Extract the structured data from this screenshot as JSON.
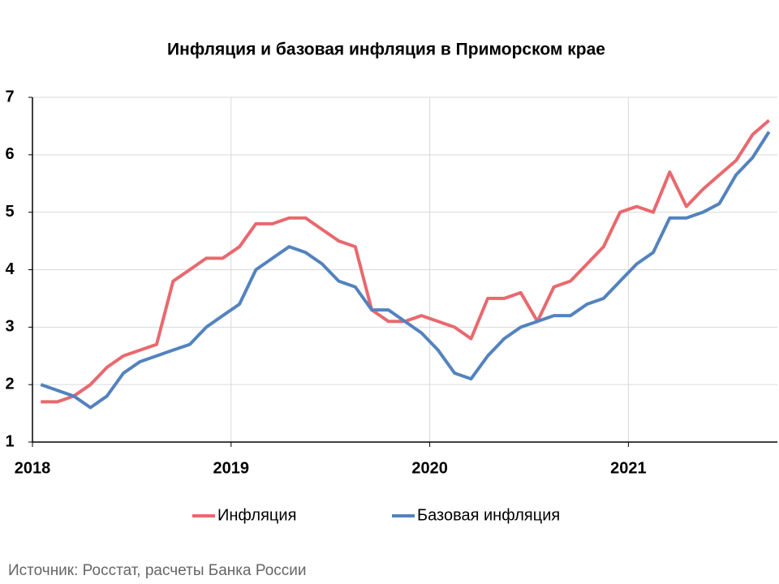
{
  "chart_data": {
    "type": "line",
    "title": "Инфляция и базовая инфляция в Приморском крае",
    "source": "Источник: Росстат, расчеты Банка России",
    "x": [
      2018.042,
      2018.125,
      2018.208,
      2018.292,
      2018.375,
      2018.458,
      2018.542,
      2018.625,
      2018.708,
      2018.792,
      2018.875,
      2018.958,
      2019.042,
      2019.125,
      2019.208,
      2019.292,
      2019.375,
      2019.458,
      2019.542,
      2019.625,
      2019.708,
      2019.792,
      2019.875,
      2019.958,
      2020.042,
      2020.125,
      2020.208,
      2020.292,
      2020.375,
      2020.458,
      2020.542,
      2020.625,
      2020.708,
      2020.792,
      2020.875,
      2020.958,
      2021.042,
      2021.125,
      2021.208,
      2021.292,
      2021.375,
      2021.458,
      2021.542,
      2021.625,
      2021.708
    ],
    "series": [
      {
        "name": "Инфляция",
        "color": "#e8696e",
        "values": [
          1.7,
          1.7,
          1.8,
          2.0,
          2.3,
          2.5,
          2.6,
          2.7,
          3.8,
          4.0,
          4.2,
          4.2,
          4.4,
          4.8,
          4.8,
          4.9,
          4.9,
          4.7,
          4.5,
          4.4,
          3.3,
          3.1,
          3.1,
          3.2,
          3.1,
          3.0,
          2.8,
          3.5,
          3.5,
          3.6,
          3.1,
          3.7,
          3.8,
          4.1,
          4.4,
          5.0,
          5.1,
          5.0,
          5.7,
          5.1,
          5.4,
          5.65,
          5.9,
          6.35,
          6.6
        ]
      },
      {
        "name": "Базовая инфляция",
        "color": "#5383be",
        "values": [
          2.0,
          1.9,
          1.8,
          1.6,
          1.8,
          2.2,
          2.4,
          2.5,
          2.6,
          2.7,
          3.0,
          3.2,
          3.4,
          4.0,
          4.2,
          4.4,
          4.3,
          4.1,
          3.8,
          3.7,
          3.3,
          3.3,
          3.1,
          2.9,
          2.6,
          2.2,
          2.1,
          2.5,
          2.8,
          3.0,
          3.1,
          3.2,
          3.2,
          3.4,
          3.5,
          3.8,
          4.1,
          4.3,
          4.9,
          4.9,
          5.0,
          5.15,
          5.65,
          5.95,
          6.4
        ]
      }
    ],
    "xlim": [
      2018,
      2021.75
    ],
    "xticks": [
      2018,
      2019,
      2020,
      2021
    ],
    "ylim": [
      1,
      7
    ],
    "yticks": [
      1,
      2,
      3,
      4,
      5,
      6,
      7
    ],
    "grid": true,
    "legend": "bottom"
  }
}
